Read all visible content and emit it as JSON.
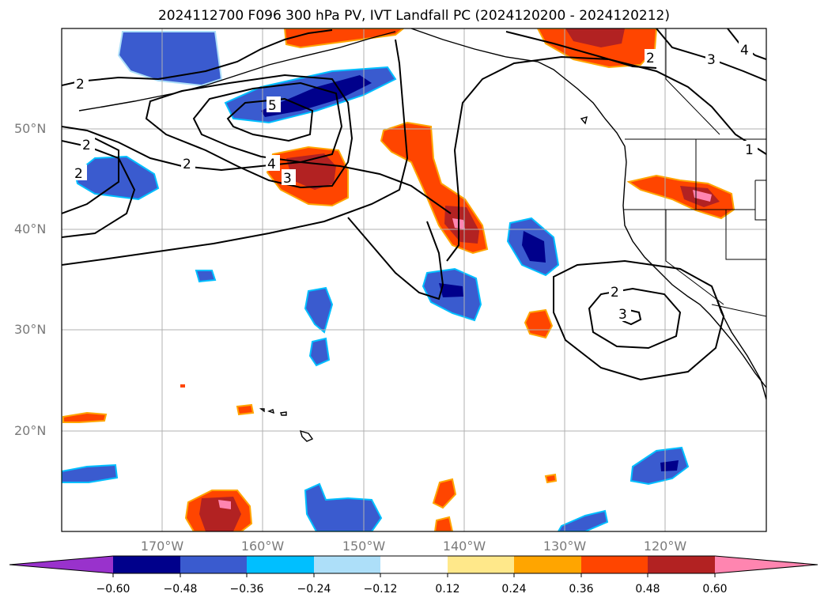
{
  "title": "2024112700 F096 300 hPa PV, IVT Landfall PC (2024120200 - 2024120212)",
  "map": {
    "projection": "PlateCarree",
    "extent_lon": [
      -180,
      -110
    ],
    "extent_lat": [
      10,
      60
    ],
    "lat_labels": [
      "50°N",
      "40°N",
      "30°N",
      "20°N"
    ],
    "lon_labels": [
      "170°W",
      "160°W",
      "150°W",
      "140°W",
      "130°W",
      "120°W"
    ],
    "gridlines": true,
    "contour_color": "#000000",
    "contour_labels": [
      "2",
      "2",
      "2",
      "2",
      "3",
      "4",
      "5",
      "2",
      "3",
      "4",
      "1",
      "2",
      "3"
    ]
  },
  "colorbar": {
    "orientation": "horizontal",
    "extend": "both",
    "tick_labels": [
      "−0.60",
      "−0.48",
      "−0.36",
      "−0.24",
      "−0.12",
      "0.12",
      "0.24",
      "0.36",
      "0.48",
      "0.60"
    ],
    "colors": [
      "#9932CC",
      "#00008B",
      "#3A5BCF",
      "#00BFFF",
      "#ADDFF9",
      "#FFFFFF",
      "#FFE88A",
      "#FFA500",
      "#FF4500",
      "#B22222",
      "#FF85B0"
    ]
  }
}
